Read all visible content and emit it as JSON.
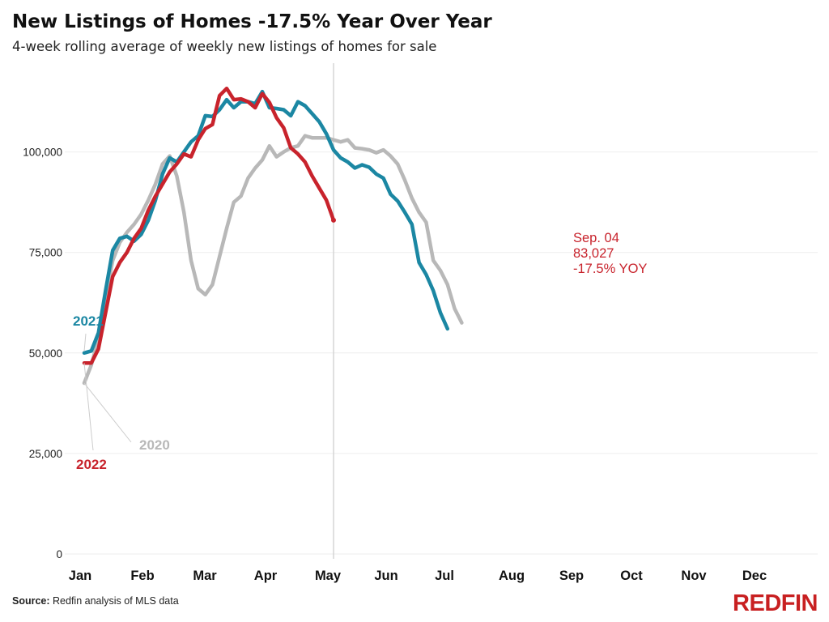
{
  "title": "New Listings of Homes -17.5% Year Over Year",
  "subtitle": "4-week rolling average of weekly new listings of homes for sale",
  "source": {
    "label": "Source:",
    "text": "Redfin analysis of MLS data"
  },
  "logo": "REDFIN",
  "colors": {
    "2021": "#1b87a3",
    "2022": "#c8232c",
    "2020": "#b8b8b8",
    "divider": "#cfcfcf",
    "grid": "#eeeeee"
  },
  "chart_data": {
    "type": "line",
    "title": "New Listings of Homes -17.5% Year Over Year",
    "subtitle": "4-week rolling average of weekly new listings of homes for sale",
    "xlabel": "",
    "ylabel": "",
    "x_ticks": [
      "Jan",
      "Feb",
      "Mar",
      "Apr",
      "May",
      "Jun",
      "Jul",
      "Aug",
      "Sep",
      "Oct",
      "Nov",
      "Dec"
    ],
    "y_ticks": [
      "0",
      "25,000",
      "50,000",
      "75,000",
      "100,000"
    ],
    "y_tick_values": [
      0,
      25000,
      50000,
      75000,
      100000
    ],
    "ylim": [
      0,
      118000
    ],
    "grid": "horizontal",
    "x_unit": "week of year",
    "series": [
      {
        "name": "2020",
        "values": [
          42500,
          47000,
          53500,
          64000,
          73000,
          77500,
          80000,
          82000,
          84500,
          88000,
          92000,
          97000,
          99000,
          94000,
          85000,
          73000,
          66000,
          64500,
          67000,
          74000,
          81000,
          87500,
          89000,
          93500,
          96000,
          98000,
          101500,
          98800,
          100000,
          101000,
          101500,
          104000,
          103500,
          103500,
          103500,
          103000,
          102500,
          103000,
          101000,
          100800,
          100500,
          99800,
          100500,
          99000,
          97000,
          93000,
          88500,
          85000,
          82500,
          73000,
          70500,
          67000,
          61000,
          57500
        ]
      },
      {
        "name": "2021",
        "values": [
          50000,
          50500,
          55000,
          65500,
          75500,
          78500,
          79000,
          77800,
          79500,
          83000,
          88000,
          94500,
          98500,
          97500,
          100000,
          102500,
          104000,
          109000,
          108800,
          110500,
          113000,
          111000,
          112500,
          112500,
          112000,
          115000,
          111000,
          110800,
          110500,
          109000,
          112500,
          111500,
          109500,
          107500,
          104500,
          100500,
          98500,
          97500,
          96000,
          96800,
          96200,
          94500,
          93500,
          89500,
          87800,
          85000,
          82000,
          72500,
          69500,
          65500,
          60000,
          56000
        ]
      },
      {
        "name": "2022",
        "values": [
          47500,
          47500,
          51000,
          60000,
          69000,
          72500,
          75000,
          78500,
          81000,
          85500,
          89000,
          92000,
          95000,
          97000,
          99500,
          98800,
          103000,
          105800,
          106800,
          114000,
          115800,
          113000,
          113200,
          112500,
          111000,
          114500,
          112300,
          108500,
          106000,
          101000,
          99500,
          97500,
          94000,
          91000,
          88000,
          83027
        ]
      }
    ],
    "labels": {
      "2021": "2021",
      "2022": "2022",
      "2020": "2020"
    },
    "annotation": {
      "lines": [
        "Sep. 04",
        "83,027",
        "-17.5% YOY"
      ],
      "value": 83027,
      "yoy_change": "-17.5%"
    }
  }
}
